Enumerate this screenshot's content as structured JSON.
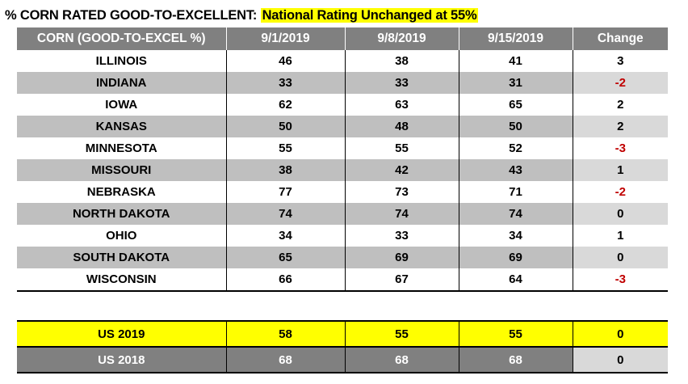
{
  "title": {
    "prefix": "% CORN RATED GOOD-TO-EXCELLENT:",
    "highlight": "National Rating Unchanged at 55%"
  },
  "table": {
    "headers": [
      "CORN (GOOD-TO-EXCEL %)",
      "9/1/2019",
      "9/8/2019",
      "9/15/2019",
      "Change"
    ],
    "rows": [
      {
        "state": "ILLINOIS",
        "w1": "46",
        "w2": "38",
        "w3": "41",
        "change": "3"
      },
      {
        "state": "INDIANA",
        "w1": "33",
        "w2": "33",
        "w3": "31",
        "change": "-2"
      },
      {
        "state": "IOWA",
        "w1": "62",
        "w2": "63",
        "w3": "65",
        "change": "2"
      },
      {
        "state": "KANSAS",
        "w1": "50",
        "w2": "48",
        "w3": "50",
        "change": "2"
      },
      {
        "state": "MINNESOTA",
        "w1": "55",
        "w2": "55",
        "w3": "52",
        "change": "-3"
      },
      {
        "state": "MISSOURI",
        "w1": "38",
        "w2": "42",
        "w3": "43",
        "change": "1"
      },
      {
        "state": "NEBRASKA",
        "w1": "77",
        "w2": "73",
        "w3": "71",
        "change": "-2"
      },
      {
        "state": "NORTH DAKOTA",
        "w1": "74",
        "w2": "74",
        "w3": "74",
        "change": "0"
      },
      {
        "state": "OHIO",
        "w1": "34",
        "w2": "33",
        "w3": "34",
        "change": "1"
      },
      {
        "state": "SOUTH DAKOTA",
        "w1": "65",
        "w2": "69",
        "w3": "69",
        "change": "0"
      },
      {
        "state": "WISCONSIN",
        "w1": "66",
        "w2": "67",
        "w3": "64",
        "change": "-3"
      }
    ]
  },
  "summary": {
    "us2019": {
      "label": "US 2019",
      "w1": "58",
      "w2": "55",
      "w3": "55",
      "change": "0"
    },
    "us2018": {
      "label": "US 2018",
      "w1": "68",
      "w2": "68",
      "w3": "68",
      "change": "0"
    }
  },
  "colors": {
    "header_bg": "#808080",
    "stripe": "#bfbfbf",
    "highlight": "#ffff00",
    "negative": "#c00000"
  }
}
